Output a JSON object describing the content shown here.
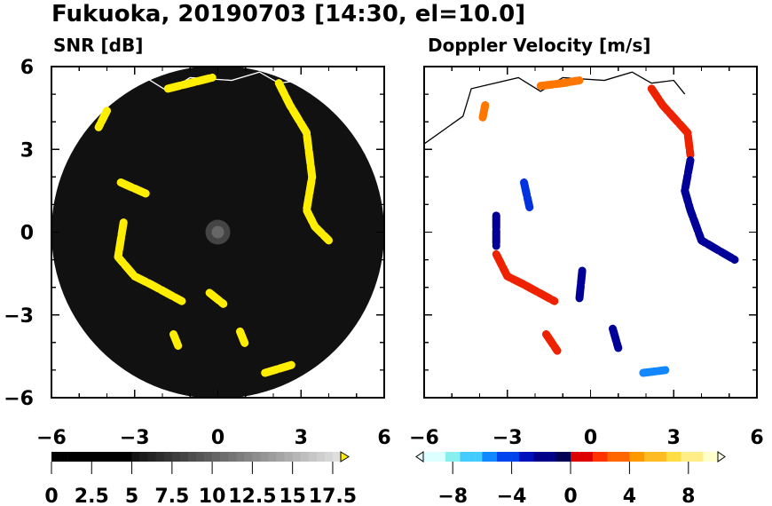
{
  "title": "Fukuoka, 20190703 [14:30, el=10.0]",
  "chart_data": [
    {
      "type": "heatmap",
      "title": "SNR [dB]",
      "xlim": [
        -6,
        6
      ],
      "ylim": [
        -6,
        6
      ],
      "xticks": [
        "−6",
        "−3",
        "0",
        "3",
        "6"
      ],
      "yticks": [
        "6",
        "3",
        "0",
        "−3",
        "−6"
      ],
      "radius_km": 6,
      "background": "#111111",
      "echo_color": "#ffee00",
      "echoes": [
        [
          [
            -1.8,
            5.2
          ],
          [
            -1.0,
            5.4
          ],
          [
            -0.2,
            5.6
          ]
        ],
        [
          [
            2.2,
            5.4
          ],
          [
            2.6,
            4.6
          ],
          [
            3.2,
            3.6
          ],
          [
            3.4,
            2.0
          ],
          [
            3.2,
            0.8
          ],
          [
            3.5,
            0.2
          ],
          [
            4.0,
            -0.3
          ]
        ],
        [
          [
            -3.4,
            0.35
          ],
          [
            -3.6,
            -0.9
          ],
          [
            -3.0,
            -1.6
          ],
          [
            -2.4,
            -1.9
          ],
          [
            -1.3,
            -2.5
          ]
        ],
        [
          [
            -3.5,
            1.8
          ],
          [
            -2.6,
            1.4
          ]
        ],
        [
          [
            -1.6,
            -3.7
          ],
          [
            -1.4,
            -4.2
          ]
        ],
        [
          [
            0.8,
            -3.6
          ],
          [
            1.0,
            -4.1
          ]
        ],
        [
          [
            1.7,
            -5.1
          ],
          [
            2.7,
            -4.8
          ]
        ],
        [
          [
            -0.3,
            -2.2
          ],
          [
            0.2,
            -2.6
          ]
        ],
        [
          [
            -4.0,
            4.4
          ],
          [
            -4.3,
            3.8
          ]
        ]
      ],
      "colorbar": {
        "min": 0,
        "max": 18,
        "step": 0.5,
        "tick_labels": [
          "0",
          "2.5",
          "5",
          "7.5",
          "10",
          "12.5",
          "15",
          "17.5"
        ],
        "tick_values": [
          0,
          2.5,
          5,
          7.5,
          10,
          12.5,
          15,
          17.5
        ],
        "over_color": "#ffee00"
      }
    },
    {
      "type": "heatmap",
      "title": "Doppler Velocity [m/s]",
      "xlim": [
        -6,
        6
      ],
      "ylim": [
        -6,
        6
      ],
      "xticks": [
        "−6",
        "−3",
        "0",
        "3",
        "6"
      ],
      "echoes": [
        {
          "color": "#ff7700",
          "points": [
            [
              -1.8,
              5.3
            ],
            [
              -1.0,
              5.4
            ],
            [
              -0.4,
              5.5
            ]
          ]
        },
        {
          "color": "#ff7700",
          "points": [
            [
              -3.8,
              4.6
            ],
            [
              -3.9,
              4.1
            ]
          ]
        },
        {
          "color": "#ee2200",
          "points": [
            [
              2.2,
              5.2
            ],
            [
              2.6,
              4.6
            ],
            [
              3.5,
              3.6
            ],
            [
              3.6,
              2.8
            ]
          ]
        },
        {
          "color": "#000099",
          "points": [
            [
              3.6,
              2.6
            ],
            [
              3.4,
              1.5
            ],
            [
              3.6,
              0.8
            ],
            [
              4.0,
              -0.3
            ],
            [
              5.2,
              -1.0
            ]
          ]
        },
        {
          "color": "#0033dd",
          "points": [
            [
              -2.4,
              1.8
            ],
            [
              -2.2,
              0.9
            ]
          ]
        },
        {
          "color": "#000099",
          "points": [
            [
              -3.4,
              0.6
            ],
            [
              -3.4,
              -0.5
            ]
          ]
        },
        {
          "color": "#ee2200",
          "points": [
            [
              -3.4,
              -0.8
            ],
            [
              -3.0,
              -1.6
            ],
            [
              -2.4,
              -1.9
            ],
            [
              -1.3,
              -2.5
            ]
          ]
        },
        {
          "color": "#ee2200",
          "points": [
            [
              -1.6,
              -3.7
            ],
            [
              -1.2,
              -4.3
            ]
          ]
        },
        {
          "color": "#000099",
          "points": [
            [
              0.8,
              -3.5
            ],
            [
              1.0,
              -4.2
            ]
          ]
        },
        {
          "color": "#1188ff",
          "points": [
            [
              1.9,
              -5.1
            ],
            [
              2.7,
              -5.0
            ]
          ]
        },
        {
          "color": "#000099",
          "points": [
            [
              -0.3,
              -1.4
            ],
            [
              -0.4,
              -2.4
            ]
          ]
        }
      ],
      "colorbar": {
        "min": -10,
        "max": 10,
        "step": 0.5,
        "tick_labels": [
          "−8",
          "−4",
          "0",
          "4",
          "8"
        ],
        "tick_values": [
          -8,
          -4,
          0,
          4,
          8
        ]
      }
    }
  ]
}
